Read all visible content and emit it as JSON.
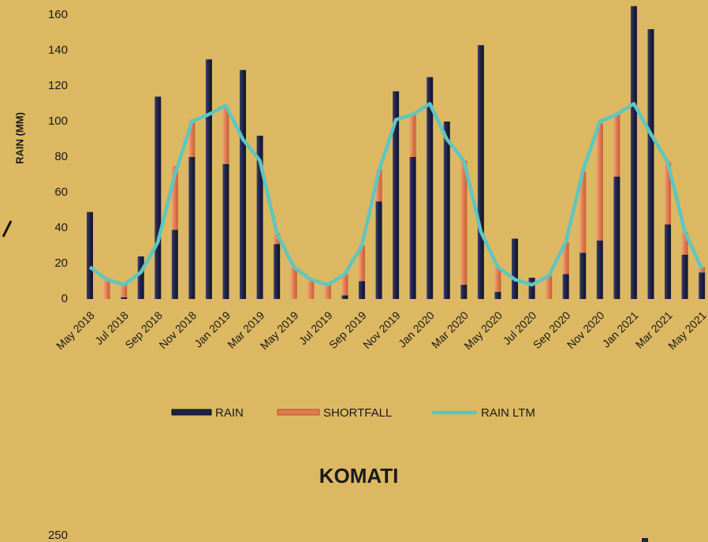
{
  "chart_data": [
    {
      "type": "bar-line",
      "ylabel": "RAIN (MM)",
      "categories": [
        "May 2018",
        null,
        "Jul 2018",
        null,
        "Sep 2018",
        null,
        "Nov 2018",
        null,
        "Jan 2019",
        null,
        "Mar 2019",
        null,
        "May 2019",
        null,
        "Jul 2019",
        null,
        "Sep 2019",
        null,
        "Nov 2019",
        null,
        "Jan 2020",
        null,
        "Mar 2020",
        null,
        "May 2020",
        null,
        "Jul 2020",
        null,
        "Sep 2020",
        null,
        "Nov 2020",
        null,
        "Jan 2021",
        null,
        "Mar 2021",
        null,
        "May 2021"
      ],
      "series": [
        {
          "name": "RAIN",
          "color": "#1e2142",
          "stack": true,
          "values": [
            49,
            0,
            1,
            24,
            114,
            39,
            80,
            135,
            76,
            129,
            92,
            31,
            0,
            0,
            0,
            2,
            10,
            55,
            117,
            80,
            125,
            100,
            8,
            143,
            4,
            34,
            12,
            0,
            14,
            26,
            33,
            69,
            165,
            152,
            42,
            25,
            15
          ]
        },
        {
          "name": "SHORTFALL",
          "color": "#e07a4e",
          "stack": true,
          "values": [
            0,
            10,
            8,
            0,
            0,
            36,
            21,
            0,
            32,
            0,
            0,
            6,
            18,
            10,
            8,
            12,
            20,
            18,
            0,
            24,
            0,
            0,
            70,
            0,
            14,
            0,
            0,
            13,
            18,
            46,
            66,
            35,
            0,
            0,
            35,
            13,
            3
          ]
        },
        {
          "name": "RAIN LTM",
          "color": "#5ec6bf",
          "line": true,
          "values": [
            18,
            11,
            8,
            15,
            32,
            70,
            100,
            104,
            109,
            90,
            78,
            37,
            18,
            11,
            8,
            14,
            30,
            72,
            101,
            104,
            110,
            90,
            78,
            38,
            18,
            11,
            8,
            13,
            32,
            72,
            100,
            104,
            110,
            93,
            77,
            38,
            17
          ]
        }
      ],
      "ylim": [
        0,
        160
      ],
      "yticks": [
        0,
        20,
        40,
        60,
        80,
        100,
        120,
        140,
        160
      ],
      "legend": "bottom"
    },
    {
      "type": "bar",
      "title": "KOMATI",
      "yticks": [
        250
      ]
    }
  ]
}
